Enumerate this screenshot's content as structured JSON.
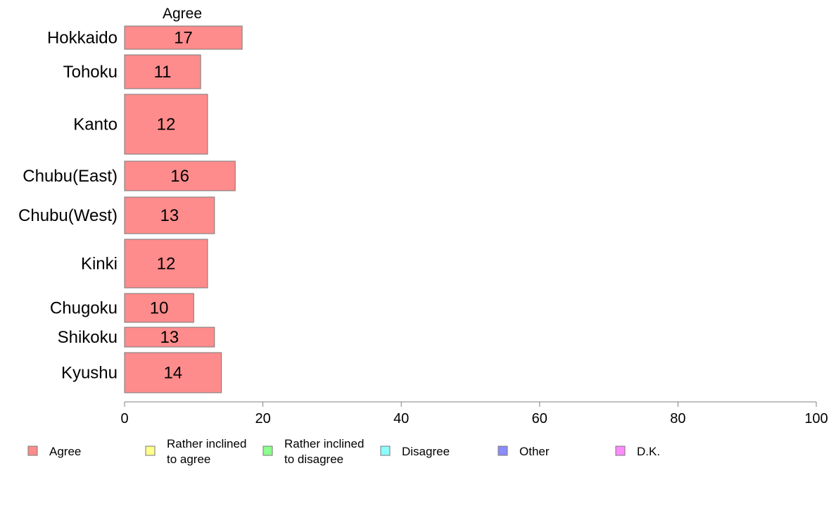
{
  "chart_data": {
    "type": "bar",
    "orientation": "horizontal",
    "stacked": true,
    "title": "Agree",
    "categories": [
      "Hokkaido",
      "Tohoku",
      "Kanto",
      "Chubu(East)",
      "Chubu(West)",
      "Kinki",
      "Chugoku",
      "Shikoku",
      "Kyushu"
    ],
    "series": [
      {
        "name": "Agree",
        "color": "#ff8c8c",
        "values": [
          17,
          11,
          12,
          16,
          13,
          12,
          10,
          13,
          14
        ]
      }
    ],
    "legend": [
      {
        "label": "Agree",
        "color": "#ff8c8c"
      },
      {
        "label": "Rather inclined\nto agree",
        "color": "#ffff8c"
      },
      {
        "label": "Rather inclined\nto disagree",
        "color": "#8cff8c"
      },
      {
        "label": "Disagree",
        "color": "#8cffff"
      },
      {
        "label": "Other",
        "color": "#8c8cff"
      },
      {
        "label": "D.K.",
        "color": "#ff8cff"
      }
    ],
    "xlim": [
      0,
      100
    ],
    "xticks": [
      0,
      20,
      40,
      60,
      80,
      100
    ],
    "xlabel": "",
    "ylabel": "",
    "grid": false,
    "legend_position": "bottom"
  }
}
